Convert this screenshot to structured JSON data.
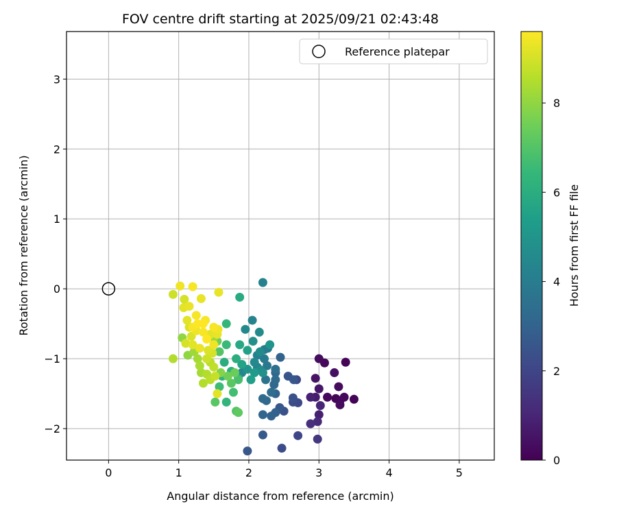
{
  "chart_data": {
    "type": "scatter",
    "title": "FOV centre drift starting at 2025/09/21 02:43:48",
    "xlabel": "Angular distance from reference (arcmin)",
    "ylabel": "Rotation from reference (arcmin)",
    "xlim": [
      -0.6,
      5.5
    ],
    "ylim": [
      -2.45,
      3.68
    ],
    "x_ticks": [
      0,
      1,
      2,
      3,
      4,
      5
    ],
    "y_ticks": [
      -2,
      -1,
      0,
      1,
      2,
      3
    ],
    "grid": true,
    "legend": {
      "position": "top-right",
      "entries": [
        "Reference platepar"
      ]
    },
    "reference_point": {
      "x": 0,
      "y": 0,
      "marker": "hollow-circle"
    },
    "colorbar": {
      "label": "Hours from first FF file",
      "min": 0,
      "max": 9.6,
      "ticks": [
        0,
        2,
        4,
        6,
        8
      ],
      "colormap": "viridis"
    },
    "series": [
      {
        "points": [
          [
            3.0,
            -1.0,
            0.3
          ],
          [
            3.08,
            -1.06,
            0.2
          ],
          [
            3.38,
            -1.05,
            0.1
          ],
          [
            3.22,
            -1.2,
            0.4
          ],
          [
            2.95,
            -1.28,
            0.5
          ],
          [
            3.28,
            -1.4,
            0.3
          ],
          [
            3.0,
            -1.43,
            0.6
          ],
          [
            3.12,
            -1.55,
            0.2
          ],
          [
            3.24,
            -1.57,
            0.1
          ],
          [
            3.3,
            -1.6,
            0.2
          ],
          [
            3.36,
            -1.55,
            0.15
          ],
          [
            3.5,
            -1.58,
            0.1
          ],
          [
            3.3,
            -1.66,
            0.3
          ],
          [
            2.95,
            -1.55,
            0.7
          ],
          [
            2.88,
            -1.55,
            0.9
          ],
          [
            3.02,
            -1.67,
            1.0
          ],
          [
            3.0,
            -1.8,
            0.8
          ],
          [
            2.98,
            -1.9,
            1.1
          ],
          [
            2.88,
            -1.93,
            1.3
          ],
          [
            2.98,
            -2.15,
            1.5
          ],
          [
            2.7,
            -2.1,
            2.0
          ],
          [
            2.47,
            -2.28,
            2.2
          ],
          [
            1.98,
            -2.32,
            2.6
          ],
          [
            2.2,
            -2.09,
            2.7
          ],
          [
            2.7,
            -1.63,
            2.1
          ],
          [
            2.63,
            -1.62,
            2.2
          ],
          [
            2.63,
            -1.56,
            2.4
          ],
          [
            2.68,
            -1.3,
            2.0
          ],
          [
            2.56,
            -1.25,
            2.5
          ],
          [
            2.64,
            -1.3,
            2.6
          ],
          [
            2.45,
            -0.98,
            3.0
          ],
          [
            2.5,
            -1.75,
            2.4
          ],
          [
            2.44,
            -1.7,
            2.6
          ],
          [
            2.38,
            -1.77,
            2.9
          ],
          [
            2.32,
            -1.82,
            3.0
          ],
          [
            2.2,
            -1.8,
            3.1
          ],
          [
            2.25,
            -1.6,
            3.2
          ],
          [
            2.2,
            -1.57,
            3.3
          ],
          [
            2.32,
            -1.48,
            3.4
          ],
          [
            2.38,
            -1.5,
            3.0
          ],
          [
            2.36,
            -1.37,
            3.2
          ],
          [
            2.38,
            -1.2,
            3.1
          ],
          [
            2.38,
            -1.3,
            3.3
          ],
          [
            2.38,
            -1.15,
            3.5
          ],
          [
            2.24,
            -1.3,
            3.6
          ],
          [
            2.26,
            -1.1,
            3.8
          ],
          [
            2.22,
            -1.0,
            3.9
          ],
          [
            2.12,
            -0.95,
            4.2
          ],
          [
            2.22,
            -0.87,
            4.0
          ],
          [
            2.27,
            -0.85,
            3.8
          ],
          [
            2.05,
            -0.45,
            4.3
          ],
          [
            2.15,
            -0.62,
            4.6
          ],
          [
            1.95,
            -0.58,
            4.5
          ],
          [
            2.06,
            -0.75,
            4.8
          ],
          [
            2.2,
            0.09,
            4.2
          ],
          [
            2.16,
            -0.9,
            4.6
          ],
          [
            2.3,
            -0.8,
            5.0
          ],
          [
            2.08,
            -1.05,
            4.5
          ],
          [
            2.12,
            -1.12,
            4.1
          ],
          [
            2.16,
            -1.16,
            4.6
          ],
          [
            2.2,
            -1.2,
            4.8
          ],
          [
            2.08,
            -1.2,
            5.2
          ],
          [
            1.98,
            -1.15,
            5.0
          ],
          [
            1.9,
            -1.2,
            4.4
          ],
          [
            2.03,
            -1.3,
            5.4
          ],
          [
            1.9,
            -1.08,
            5.6
          ],
          [
            1.98,
            -0.88,
            5.5
          ],
          [
            1.87,
            -0.8,
            5.8
          ],
          [
            1.87,
            -0.12,
            5.9
          ],
          [
            1.82,
            -1.0,
            6.0
          ],
          [
            1.85,
            -1.28,
            5.7
          ],
          [
            1.75,
            -1.18,
            6.1
          ],
          [
            1.68,
            -0.5,
            6.4
          ],
          [
            1.68,
            -0.8,
            6.5
          ],
          [
            1.65,
            -1.05,
            6.0
          ],
          [
            1.62,
            -1.25,
            6.2
          ],
          [
            1.68,
            -1.62,
            6.3
          ],
          [
            1.58,
            -1.4,
            6.6
          ],
          [
            1.78,
            -1.48,
            6.7
          ],
          [
            1.85,
            -1.3,
            6.8
          ],
          [
            1.82,
            -1.75,
            7.0
          ],
          [
            1.85,
            -1.77,
            7.2
          ],
          [
            1.52,
            -1.62,
            7.1
          ],
          [
            1.75,
            -1.35,
            7.1
          ],
          [
            1.8,
            -1.2,
            7.4
          ],
          [
            1.7,
            -1.25,
            7.5
          ],
          [
            1.6,
            -1.2,
            7.8
          ],
          [
            1.58,
            -0.9,
            7.0
          ],
          [
            1.55,
            -0.75,
            7.5
          ],
          [
            1.5,
            -0.7,
            8.2
          ],
          [
            1.05,
            -0.7,
            8.0
          ],
          [
            1.13,
            -0.95,
            8.0
          ],
          [
            1.22,
            -0.9,
            8.2
          ],
          [
            1.27,
            -1.0,
            8.3
          ],
          [
            1.3,
            -1.1,
            8.4
          ],
          [
            1.32,
            -1.2,
            8.3
          ],
          [
            1.4,
            -1.22,
            8.5
          ],
          [
            1.35,
            -1.35,
            8.5
          ],
          [
            1.45,
            -1.3,
            8.6
          ],
          [
            1.52,
            -1.25,
            8.8
          ],
          [
            1.5,
            -1.12,
            8.7
          ],
          [
            1.45,
            -1.05,
            8.6
          ],
          [
            0.92,
            -1.0,
            8.5
          ],
          [
            0.92,
            -0.08,
            8.9
          ],
          [
            1.08,
            -0.15,
            9.0
          ],
          [
            1.07,
            -0.27,
            9.2
          ],
          [
            1.15,
            -0.25,
            9.3
          ],
          [
            1.02,
            0.04,
            9.4
          ],
          [
            1.2,
            0.03,
            9.5
          ],
          [
            1.32,
            -0.14,
            9.3
          ],
          [
            1.57,
            -0.05,
            9.3
          ],
          [
            1.25,
            -0.38,
            9.5
          ],
          [
            1.12,
            -0.45,
            9.2
          ],
          [
            1.15,
            -0.55,
            9.1
          ],
          [
            1.38,
            -0.45,
            9.5
          ],
          [
            1.35,
            -0.5,
            9.6
          ],
          [
            1.5,
            -0.55,
            9.5
          ],
          [
            1.56,
            -0.58,
            9.4
          ],
          [
            1.55,
            -0.65,
            9.3
          ],
          [
            1.45,
            -0.65,
            9.2
          ],
          [
            1.35,
            -0.62,
            9.5
          ],
          [
            1.25,
            -0.6,
            9.4
          ],
          [
            1.18,
            -0.68,
            9.1
          ],
          [
            1.1,
            -0.78,
            9.0
          ],
          [
            1.2,
            -0.8,
            9.2
          ],
          [
            1.3,
            -0.85,
            9.3
          ],
          [
            1.42,
            -0.88,
            9.1
          ],
          [
            1.48,
            -0.92,
            9.0
          ],
          [
            1.4,
            -1.0,
            8.9
          ],
          [
            1.55,
            -1.5,
            9.2
          ],
          [
            1.5,
            -0.8,
            9.4
          ],
          [
            1.27,
            -0.5,
            9.6
          ],
          [
            1.2,
            -0.55,
            9.5
          ],
          [
            1.4,
            -0.72,
            9.6
          ]
        ]
      }
    ]
  }
}
